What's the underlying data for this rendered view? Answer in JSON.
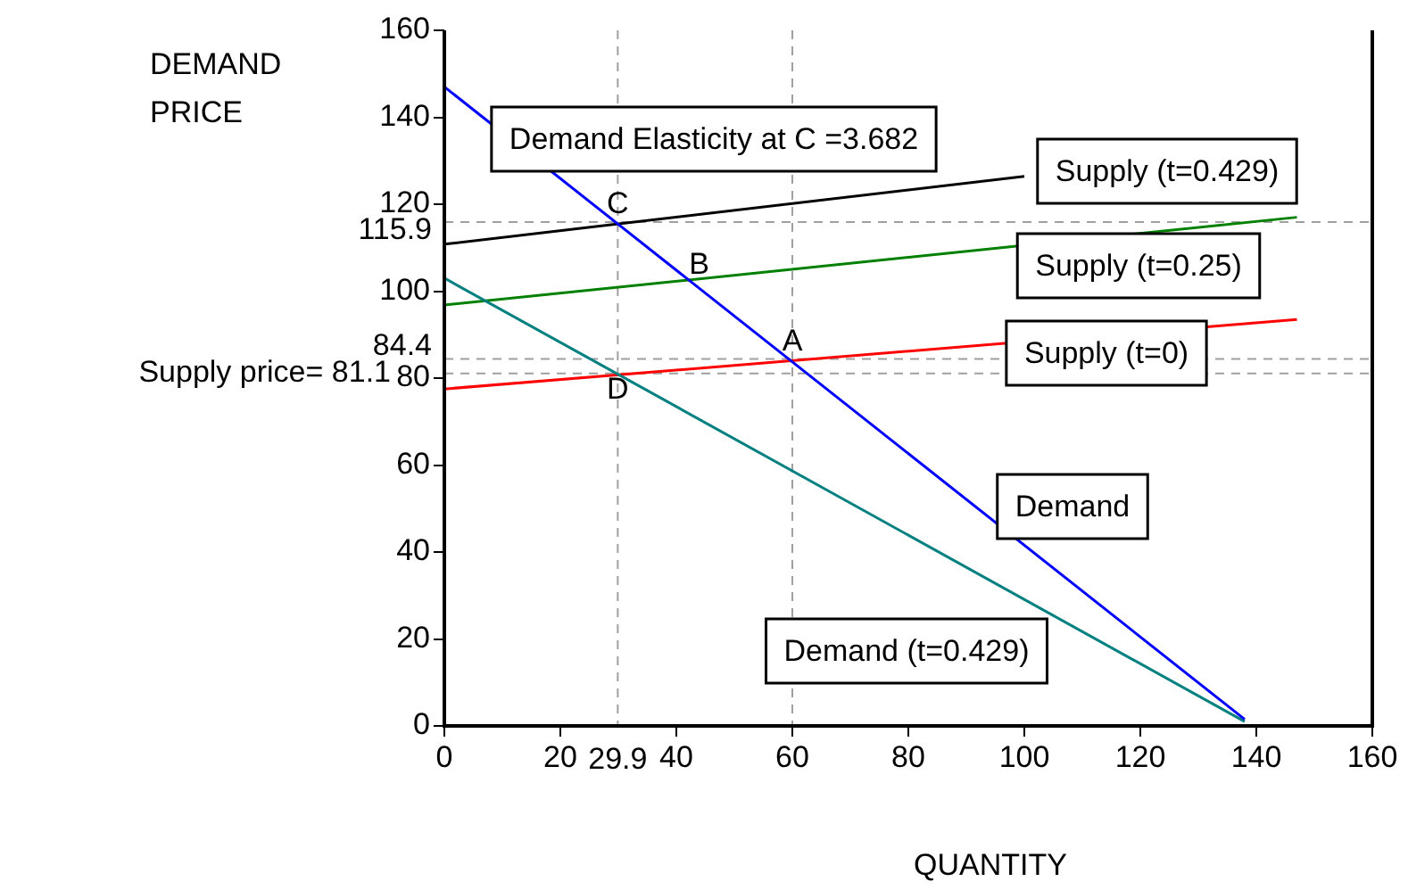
{
  "chart_data": {
    "type": "line",
    "xlabel": "QUANTITY",
    "ylabel": "DEMAND PRICE",
    "xlim": [
      0,
      160
    ],
    "xticks": [
      0,
      20,
      40,
      60,
      80,
      100,
      120,
      140,
      160
    ],
    "ylim": [
      0,
      160
    ],
    "yticks": [
      0,
      20,
      40,
      60,
      80,
      100,
      120,
      140,
      160
    ],
    "grid": false,
    "legend": false,
    "marker": "none",
    "line_style": "solid",
    "series": [
      {
        "name": "Demand",
        "color": "#0000ff",
        "x": [
          0,
          138
        ],
        "values": [
          147,
          1.5
        ]
      },
      {
        "name": "Demand (t=0.429)",
        "color": "#008080",
        "x": [
          0,
          138
        ],
        "values": [
          103,
          1
        ]
      },
      {
        "name": "Supply (t=0)",
        "color": "#ff0000",
        "x": [
          0,
          147
        ],
        "values": [
          77.5,
          93.5
        ]
      },
      {
        "name": "Supply (t=0.25)",
        "color": "#008000",
        "x": [
          0,
          147
        ],
        "values": [
          96.8,
          117
        ]
      },
      {
        "name": "Supply (t=0.429)",
        "color": "#000000",
        "x": [
          0,
          100
        ],
        "values": [
          110.8,
          126.4
        ]
      }
    ],
    "ref_lines": [
      {
        "axis": "y",
        "value": 115.9,
        "label": "115.9",
        "color": "#a0a0a0",
        "line_style": "dashed"
      },
      {
        "axis": "y",
        "value": 84.4,
        "label": "84.4",
        "color": "#a0a0a0",
        "line_style": "dashed"
      },
      {
        "axis": "y",
        "value": 81.1,
        "label": "Supply price= 81.1",
        "color": "#a0a0a0",
        "line_style": "dashed"
      },
      {
        "axis": "x",
        "value": 29.9,
        "label": "29.9",
        "color": "#a0a0a0",
        "line_style": "dashed"
      },
      {
        "axis": "x",
        "value": 60,
        "label": null,
        "color": "#a0a0a0",
        "line_style": "dashed"
      }
    ],
    "annotations": [
      "Demand Elasticity at C =3.682",
      {
        "text": "C",
        "x": 29.9,
        "y": 115.9
      },
      {
        "text": "B",
        "x": 43,
        "y": 102
      },
      {
        "text": "A",
        "x": 60,
        "y": 84.4
      },
      {
        "text": "D",
        "x": 29.9,
        "y": 81.1
      }
    ]
  }
}
